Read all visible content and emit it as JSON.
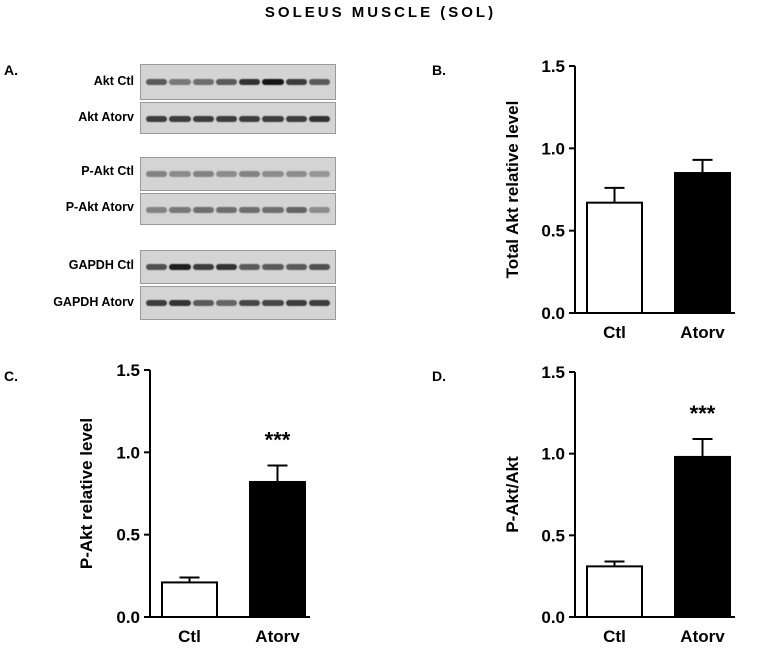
{
  "figure_title": "SOLEUS MUSCLE (SOL)",
  "panel_letters": [
    "A.",
    "B.",
    "C.",
    "D."
  ],
  "blots": [
    {
      "label": "Akt Ctl",
      "bands": [
        0.55,
        0.4,
        0.45,
        0.55,
        0.75,
        0.9,
        0.7,
        0.55
      ]
    },
    {
      "label": "Akt Atorv",
      "bands": [
        0.7,
        0.7,
        0.7,
        0.7,
        0.7,
        0.7,
        0.7,
        0.75
      ]
    },
    {
      "label": "P-Akt Ctl",
      "bands": [
        0.35,
        0.3,
        0.35,
        0.3,
        0.35,
        0.3,
        0.3,
        0.25
      ]
    },
    {
      "label": "P-Akt Atorv",
      "bands": [
        0.35,
        0.4,
        0.45,
        0.45,
        0.45,
        0.45,
        0.5,
        0.3
      ]
    },
    {
      "label": "GAPDH Ctl",
      "bands": [
        0.6,
        0.85,
        0.7,
        0.75,
        0.55,
        0.55,
        0.55,
        0.6
      ]
    },
    {
      "label": "GAPDH Atorv",
      "bands": [
        0.7,
        0.75,
        0.55,
        0.5,
        0.65,
        0.65,
        0.7,
        0.7
      ]
    }
  ],
  "chart_data": [
    {
      "panel": "B.",
      "type": "bar",
      "categories": [
        "Ctl",
        "Atorv"
      ],
      "values": [
        0.67,
        0.85
      ],
      "errors": [
        0.09,
        0.08
      ],
      "ylabel": "Total Akt relative level",
      "ylim": [
        0,
        1.5
      ],
      "yticks": [
        "0.0",
        "0.5",
        "1.0",
        "1.5"
      ],
      "annotations": [
        "",
        ""
      ],
      "fills": [
        "#ffffff",
        "#000000"
      ]
    },
    {
      "panel": "C.",
      "type": "bar",
      "categories": [
        "Ctl",
        "Atorv"
      ],
      "values": [
        0.21,
        0.82
      ],
      "errors": [
        0.03,
        0.1
      ],
      "ylabel": "P-Akt relative level",
      "ylim": [
        0,
        1.5
      ],
      "yticks": [
        "0.0",
        "0.5",
        "1.0",
        "1.5"
      ],
      "annotations": [
        "",
        "***"
      ],
      "fills": [
        "#ffffff",
        "#000000"
      ]
    },
    {
      "panel": "D.",
      "type": "bar",
      "categories": [
        "Ctl",
        "Atorv"
      ],
      "values": [
        0.31,
        0.98
      ],
      "errors": [
        0.03,
        0.11
      ],
      "ylabel": "P-Akt/Akt",
      "ylim": [
        0,
        1.5
      ],
      "yticks": [
        "0.0",
        "0.5",
        "1.0",
        "1.5"
      ],
      "annotations": [
        "",
        "***"
      ],
      "fills": [
        "#ffffff",
        "#000000"
      ]
    }
  ]
}
